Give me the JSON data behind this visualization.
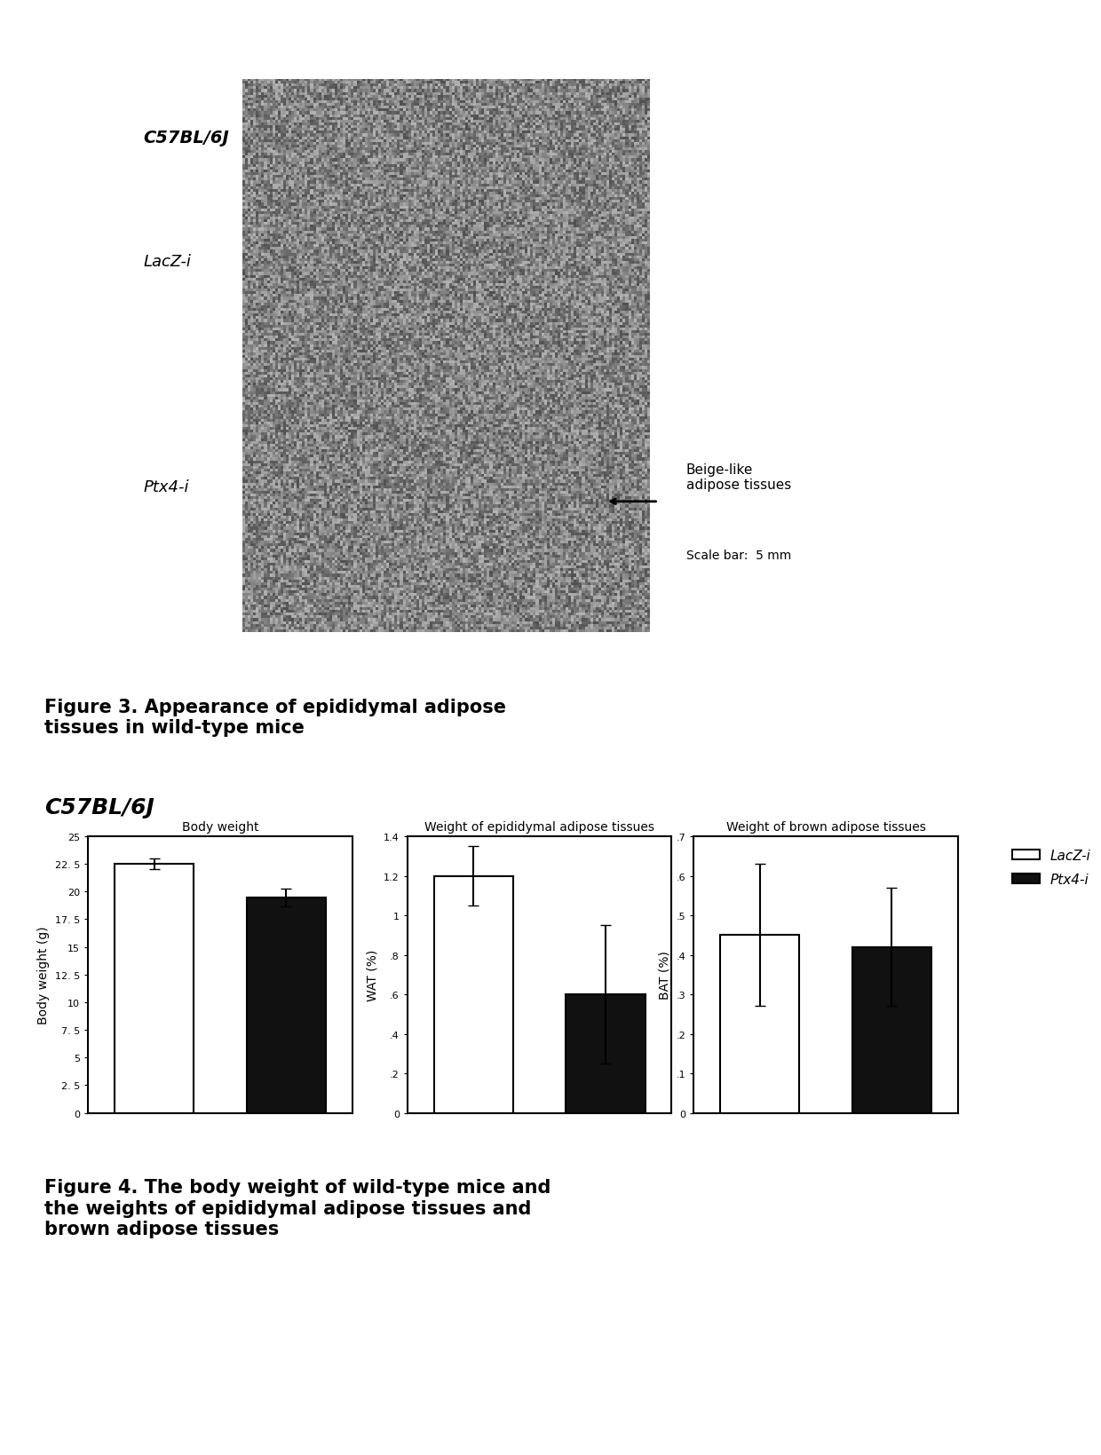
{
  "fig3_title": "Figure 3. Appearance of epididymal adipose\ntissues in wild-type mice",
  "fig4_title": "Figure 4. The body weight of wild-type mice and\nthe weights of epididymal adipose tissues and\nbrown adipose tissues",
  "strain_label": "C57BL/6J",
  "lacz_label": "LacZ-i",
  "ptx4_label": "Ptx4-i",
  "beige_label": "Beige-like\nadipose tissues",
  "scale_bar_label": "Scale bar:  5 mm",
  "chart_strain": "C57BL/6J",
  "bw_title": "Body weight",
  "bw_ylabel": "Body weight (g)",
  "bw_lacz": 22.5,
  "bw_ptx4": 19.5,
  "bw_lacz_err": 0.5,
  "bw_ptx4_err": 0.8,
  "bw_yticks": [
    0,
    2.5,
    5,
    7.5,
    10,
    12.5,
    15,
    17.5,
    20,
    22.5,
    25
  ],
  "bw_ylim": [
    0,
    25
  ],
  "wat_title": "Weight of epididymal adipose tissues",
  "wat_ylabel": "WAT (%)",
  "wat_lacz": 1.2,
  "wat_ptx4": 0.6,
  "wat_lacz_err": 0.15,
  "wat_ptx4_err": 0.35,
  "wat_yticks": [
    0,
    0.2,
    0.4,
    0.6,
    0.8,
    1.0,
    1.2,
    1.4
  ],
  "wat_ylim": [
    0,
    1.4
  ],
  "bat_title": "Weight of brown adipose tissues",
  "bat_ylabel": "BAT (%)",
  "bat_lacz": 0.45,
  "bat_ptx4": 0.42,
  "bat_lacz_err": 0.18,
  "bat_ptx4_err": 0.15,
  "bat_yticks": [
    0,
    0.1,
    0.2,
    0.3,
    0.4,
    0.5,
    0.6,
    0.7
  ],
  "bat_ylim": [
    0,
    0.7
  ],
  "legend_lacz": "LacZ-i",
  "legend_ptx4": "Ptx4-i",
  "bar_white": "#ffffff",
  "bar_black": "#111111",
  "bar_edge": "#000000",
  "background": "#ffffff"
}
